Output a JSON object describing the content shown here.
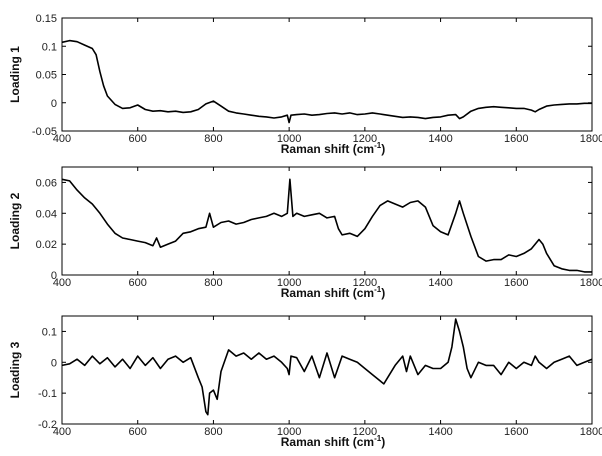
{
  "chart_data": [
    {
      "type": "line",
      "ylabel": "Loading 1",
      "xlabel": "Raman shift (cm",
      "xlabel_sup": "-1",
      "xlabel_end": ")",
      "xlim": [
        400,
        1800
      ],
      "ylim": [
        -0.05,
        0.15
      ],
      "xticks": [
        "400",
        "600",
        "800",
        "1000",
        "1200",
        "1400",
        "1600",
        "1800"
      ],
      "yticks": [
        "-0.05",
        "0",
        "0.05",
        "0.1",
        "0.15"
      ],
      "series": [
        {
          "x": [
            400,
            420,
            440,
            460,
            480,
            490,
            500,
            510,
            520,
            540,
            560,
            580,
            600,
            620,
            640,
            660,
            680,
            700,
            720,
            740,
            760,
            780,
            800,
            820,
            840,
            860,
            880,
            900,
            920,
            940,
            960,
            980,
            995,
            1000,
            1005,
            1020,
            1040,
            1060,
            1080,
            1100,
            1120,
            1140,
            1160,
            1180,
            1200,
            1220,
            1240,
            1260,
            1280,
            1300,
            1320,
            1340,
            1360,
            1380,
            1400,
            1420,
            1440,
            1450,
            1460,
            1480,
            1500,
            1520,
            1540,
            1560,
            1580,
            1600,
            1620,
            1640,
            1650,
            1660,
            1680,
            1700,
            1720,
            1740,
            1760,
            1780,
            1800
          ],
          "values": [
            0.107,
            0.11,
            0.108,
            0.102,
            0.096,
            0.085,
            0.055,
            0.03,
            0.012,
            -0.003,
            -0.01,
            -0.009,
            -0.004,
            -0.012,
            -0.015,
            -0.014,
            -0.016,
            -0.015,
            -0.017,
            -0.016,
            -0.012,
            -0.002,
            0.003,
            -0.006,
            -0.015,
            -0.018,
            -0.02,
            -0.022,
            -0.024,
            -0.025,
            -0.027,
            -0.025,
            -0.022,
            -0.035,
            -0.022,
            -0.021,
            -0.02,
            -0.022,
            -0.021,
            -0.019,
            -0.018,
            -0.02,
            -0.018,
            -0.021,
            -0.02,
            -0.018,
            -0.02,
            -0.022,
            -0.024,
            -0.026,
            -0.025,
            -0.026,
            -0.028,
            -0.026,
            -0.025,
            -0.022,
            -0.021,
            -0.028,
            -0.025,
            -0.015,
            -0.01,
            -0.008,
            -0.007,
            -0.008,
            -0.009,
            -0.01,
            -0.01,
            -0.013,
            -0.016,
            -0.012,
            -0.006,
            -0.004,
            -0.003,
            -0.002,
            -0.002,
            -0.001,
            -0.001
          ]
        }
      ]
    },
    {
      "type": "line",
      "ylabel": "Loading 2",
      "xlabel": "Raman shift (cm",
      "xlabel_sup": "-1",
      "xlabel_end": ")",
      "xlim": [
        400,
        1800
      ],
      "ylim": [
        0,
        0.07
      ],
      "xticks": [
        "400",
        "600",
        "800",
        "1000",
        "1200",
        "1400",
        "1600",
        "1800"
      ],
      "yticks": [
        "0",
        "0.02",
        "0.04",
        "0.06"
      ],
      "series": [
        {
          "x": [
            400,
            420,
            440,
            460,
            480,
            500,
            520,
            540,
            560,
            580,
            600,
            620,
            640,
            650,
            660,
            680,
            700,
            720,
            740,
            760,
            780,
            790,
            800,
            820,
            840,
            860,
            880,
            900,
            920,
            940,
            960,
            980,
            995,
            1002,
            1010,
            1020,
            1040,
            1060,
            1080,
            1100,
            1120,
            1130,
            1140,
            1160,
            1180,
            1200,
            1220,
            1240,
            1260,
            1280,
            1300,
            1320,
            1340,
            1360,
            1380,
            1400,
            1420,
            1440,
            1450,
            1460,
            1480,
            1500,
            1520,
            1540,
            1560,
            1580,
            1600,
            1620,
            1640,
            1660,
            1670,
            1680,
            1700,
            1720,
            1740,
            1760,
            1780,
            1800
          ],
          "values": [
            0.062,
            0.061,
            0.055,
            0.05,
            0.046,
            0.04,
            0.033,
            0.027,
            0.024,
            0.023,
            0.022,
            0.021,
            0.019,
            0.024,
            0.018,
            0.02,
            0.022,
            0.027,
            0.028,
            0.03,
            0.031,
            0.04,
            0.031,
            0.034,
            0.035,
            0.033,
            0.034,
            0.036,
            0.037,
            0.038,
            0.04,
            0.038,
            0.04,
            0.062,
            0.038,
            0.04,
            0.038,
            0.039,
            0.04,
            0.037,
            0.038,
            0.03,
            0.026,
            0.027,
            0.025,
            0.03,
            0.038,
            0.045,
            0.048,
            0.046,
            0.044,
            0.047,
            0.048,
            0.044,
            0.032,
            0.028,
            0.026,
            0.04,
            0.048,
            0.04,
            0.025,
            0.012,
            0.009,
            0.01,
            0.01,
            0.013,
            0.012,
            0.014,
            0.017,
            0.023,
            0.02,
            0.014,
            0.006,
            0.004,
            0.003,
            0.003,
            0.002,
            0.002
          ]
        }
      ]
    },
    {
      "type": "line",
      "ylabel": "Loading 3",
      "xlabel": "Raman shift (cm",
      "xlabel_sup": "-1",
      "xlabel_end": ")",
      "xlim": [
        400,
        1800
      ],
      "ylim": [
        -0.2,
        0.15
      ],
      "xticks": [
        "400",
        "600",
        "800",
        "1000",
        "1200",
        "1400",
        "1600",
        "1800"
      ],
      "yticks": [
        "-0.2",
        "-0.1",
        "0",
        "0.1"
      ],
      "series": [
        {
          "x": [
            400,
            420,
            440,
            460,
            480,
            500,
            520,
            540,
            560,
            580,
            600,
            620,
            640,
            660,
            680,
            700,
            720,
            740,
            760,
            770,
            780,
            785,
            790,
            800,
            810,
            820,
            840,
            860,
            880,
            900,
            920,
            940,
            960,
            980,
            995,
            1000,
            1005,
            1020,
            1040,
            1060,
            1080,
            1100,
            1120,
            1140,
            1160,
            1180,
            1200,
            1220,
            1240,
            1250,
            1260,
            1280,
            1300,
            1310,
            1320,
            1340,
            1360,
            1380,
            1400,
            1420,
            1430,
            1440,
            1450,
            1460,
            1470,
            1480,
            1500,
            1520,
            1540,
            1560,
            1580,
            1600,
            1620,
            1640,
            1650,
            1660,
            1680,
            1700,
            1720,
            1740,
            1760,
            1780,
            1800
          ],
          "values": [
            -0.01,
            -0.005,
            0.01,
            -0.01,
            0.02,
            -0.005,
            0.015,
            -0.015,
            0.01,
            -0.02,
            0.02,
            -0.01,
            0.015,
            -0.02,
            0.01,
            0.02,
            0.0,
            0.015,
            -0.05,
            -0.08,
            -0.16,
            -0.17,
            -0.1,
            -0.09,
            -0.12,
            -0.03,
            0.04,
            0.02,
            0.03,
            0.01,
            0.03,
            0.01,
            0.02,
            0.0,
            -0.02,
            -0.04,
            0.02,
            0.015,
            -0.03,
            0.02,
            -0.05,
            0.03,
            -0.05,
            0.02,
            0.01,
            0.0,
            -0.02,
            -0.04,
            -0.06,
            -0.07,
            -0.05,
            -0.01,
            0.02,
            -0.03,
            0.02,
            -0.04,
            -0.01,
            -0.02,
            -0.02,
            0.0,
            0.05,
            0.14,
            0.1,
            0.05,
            -0.02,
            -0.05,
            0.0,
            -0.01,
            -0.01,
            -0.04,
            0.0,
            -0.02,
            0.0,
            -0.01,
            0.02,
            0.0,
            -0.02,
            0.0,
            0.01,
            0.02,
            -0.01,
            0.0,
            0.01
          ]
        }
      ]
    }
  ]
}
